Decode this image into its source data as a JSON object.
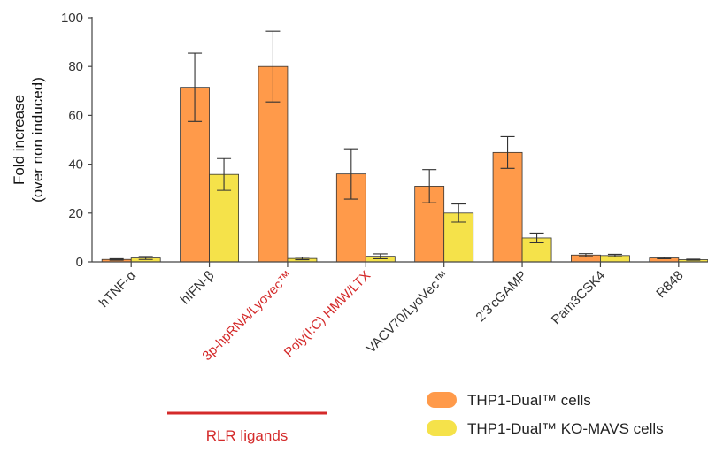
{
  "chart_data": {
    "type": "bar",
    "title": "",
    "xlabel": "",
    "ylabel": [
      "Fold increase",
      "(over non induced)"
    ],
    "ylim": [
      0,
      100
    ],
    "yticks": [
      0,
      20,
      40,
      60,
      80,
      100
    ],
    "categories": [
      "hTNF-α",
      "hIFN-β",
      "3p-hpRNA/Lyovec™",
      "Poly(I:C) HMW/LTX",
      "VACV70/LyoVec™",
      "2'3'cGAMP",
      "Pam3CSK4",
      "R848"
    ],
    "highlighted_categories": [
      "3p-hpRNA/Lyovec™",
      "Poly(I:C) HMW/LTX"
    ],
    "series": [
      {
        "name": "THP1-Dual™ cells",
        "color": "#FF9A4A",
        "values": [
          1.0,
          71.5,
          80.0,
          36.0,
          31.0,
          44.8,
          2.8,
          1.6
        ],
        "error": [
          0.3,
          14.0,
          14.5,
          10.3,
          6.8,
          6.5,
          0.6,
          0.3
        ]
      },
      {
        "name": "THP1-Dual™ KO-MAVS cells",
        "color": "#F5E24A",
        "values": [
          1.6,
          35.8,
          1.4,
          2.3,
          20.0,
          9.8,
          2.6,
          0.9
        ],
        "error": [
          0.6,
          6.5,
          0.5,
          1.0,
          3.7,
          2.0,
          0.5,
          0.2
        ]
      }
    ],
    "legend_position": "bottom-right",
    "group_annotation": {
      "label": "RLR ligands",
      "color": "#D42A2A"
    },
    "colors": {
      "highlight": "#D42A2A",
      "axis": "#444444",
      "text": "#333333"
    }
  }
}
